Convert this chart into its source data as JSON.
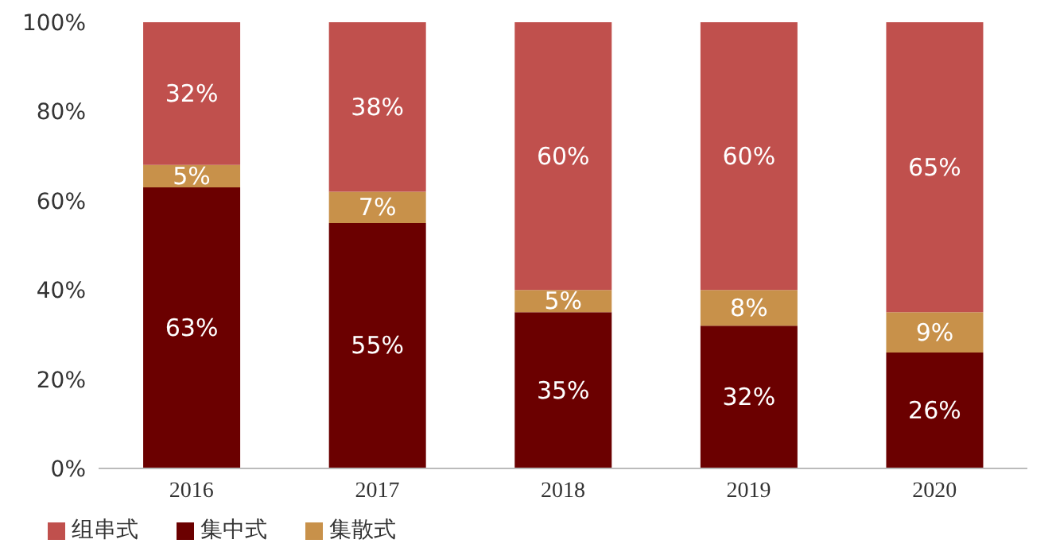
{
  "chart_data": {
    "type": "bar",
    "stacked": true,
    "categories": [
      "2016",
      "2017",
      "2018",
      "2019",
      "2020"
    ],
    "series": [
      {
        "name": "集中式",
        "color": "#6b0000",
        "values": [
          63,
          55,
          35,
          32,
          26
        ],
        "value_labels": [
          "63%",
          "55%",
          "35%",
          "32%",
          "26%"
        ]
      },
      {
        "name": "集散式",
        "color": "#c8914a",
        "values": [
          5,
          7,
          5,
          8,
          9
        ],
        "value_labels": [
          "5%",
          "7%",
          "5%",
          "8%",
          "9%"
        ]
      },
      {
        "name": "组串式",
        "color": "#c0504d",
        "values": [
          32,
          38,
          60,
          60,
          65
        ],
        "value_labels": [
          "32%",
          "38%",
          "60%",
          "60%",
          "65%"
        ]
      }
    ],
    "ylim": [
      0,
      100
    ],
    "yticks": [
      {
        "value": 0,
        "label": "0%"
      },
      {
        "value": 20,
        "label": "20%"
      },
      {
        "value": 40,
        "label": "40%"
      },
      {
        "value": 60,
        "label": "60%"
      },
      {
        "value": 80,
        "label": "80%"
      },
      {
        "value": 100,
        "label": "100%"
      }
    ],
    "grid": false,
    "legend": "bottom left"
  }
}
